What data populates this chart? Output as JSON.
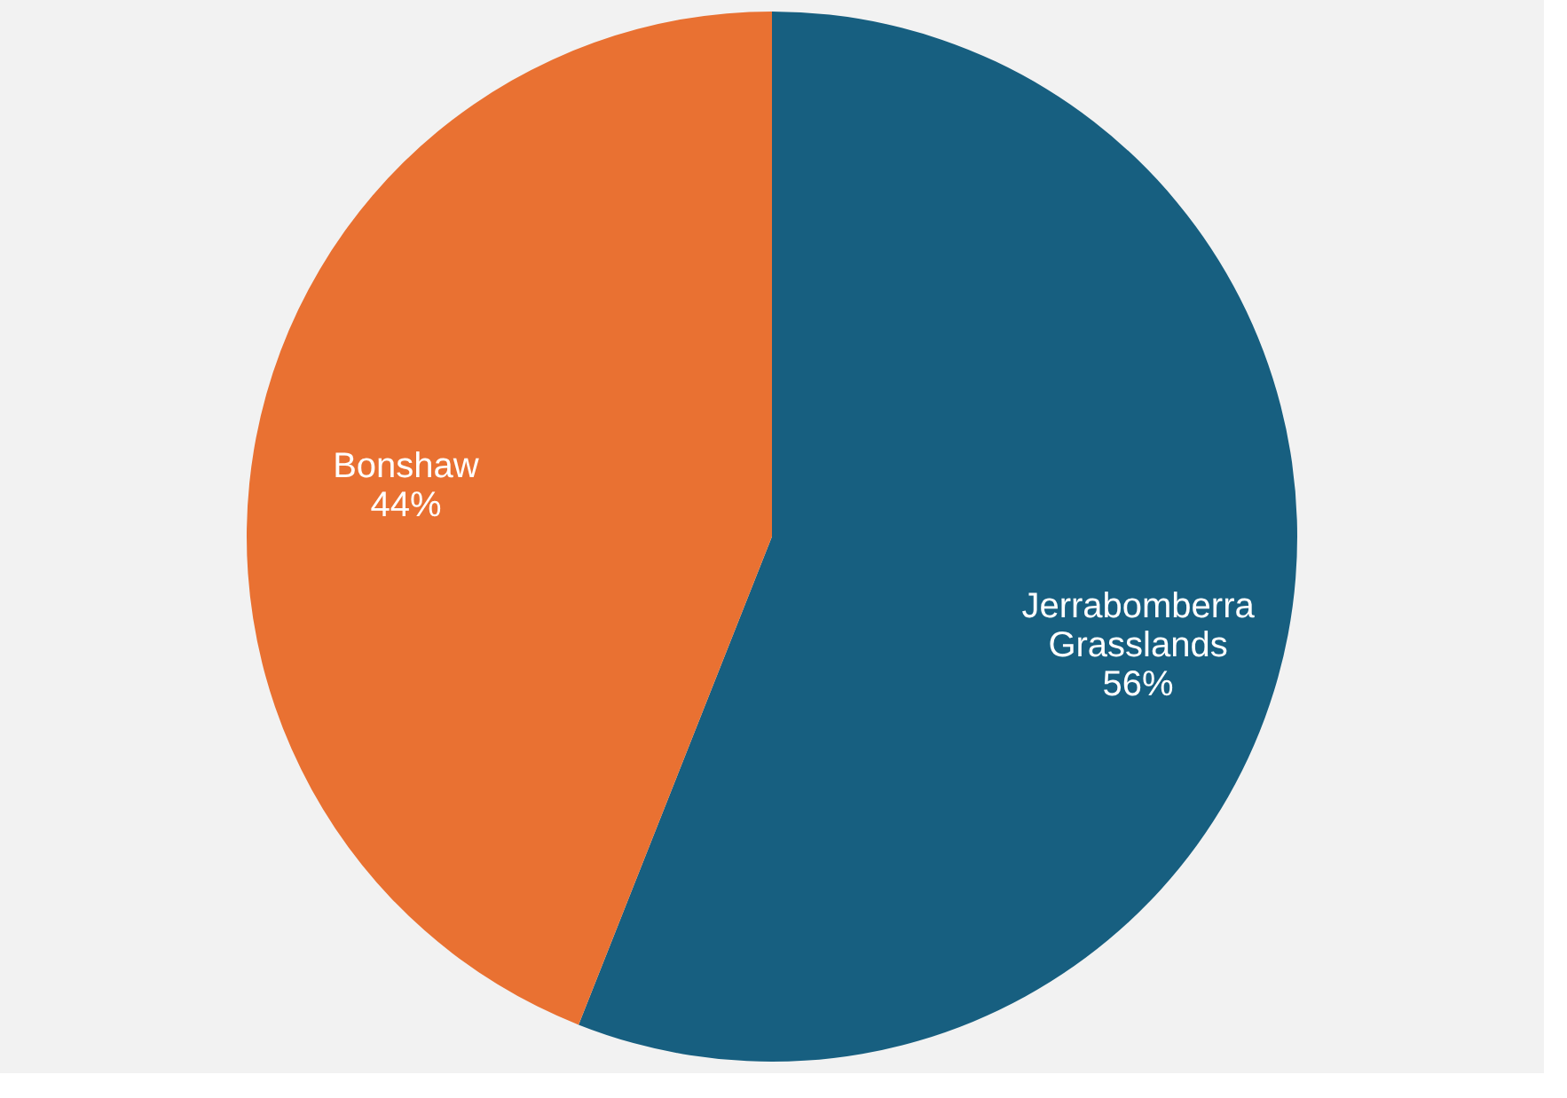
{
  "chart_data": {
    "type": "pie",
    "categories": [
      "Jerrabomberra Grasslands",
      "Bonshaw"
    ],
    "values": [
      56,
      44
    ],
    "colors": [
      "#175f80",
      "#e97132"
    ],
    "value_labels": [
      "56%",
      "44%"
    ],
    "legend": false
  }
}
